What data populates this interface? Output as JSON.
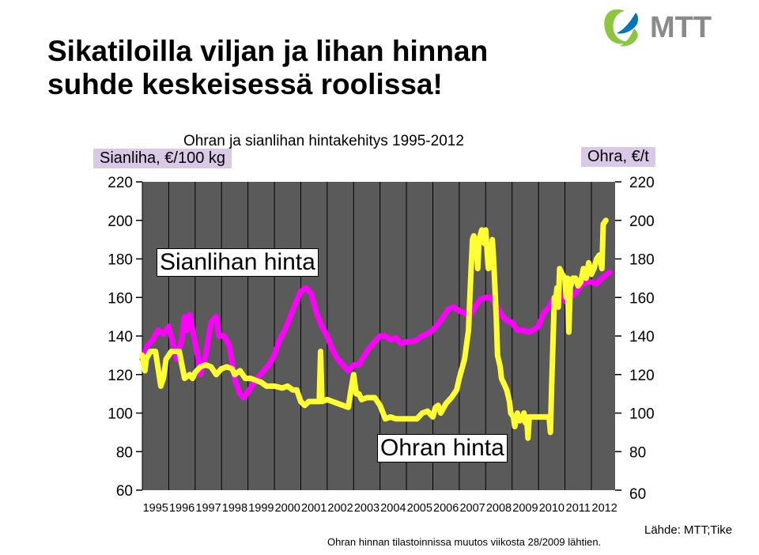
{
  "slide": {
    "title_line1": "Sikatiloilla viljan ja lihan hinnan",
    "title_line2": "suhde keskeisessä roolissa!",
    "logo_text": "MTT",
    "source": "Lähde: MTT;Tike",
    "footnote": "Ohran hinnan tilastoinnissa muutos viikosta 28/2009 lähtien."
  },
  "colors": {
    "plot_background": "#5a5a5a",
    "pork_line": "#ff00ff",
    "barley_line": "#ffff33",
    "label_background": "#d9c8e6",
    "logo_green": "#8cc63f",
    "logo_blue": "#0077bb"
  },
  "chart_data": {
    "type": "line",
    "title": "Ohran ja sianlihan hintakehitys 1995-2012",
    "ylabel_left": "Sianliha, €/100 kg",
    "ylabel_right": "Ohra, €/t",
    "ylim": [
      60,
      220
    ],
    "y_ticks": [
      "60",
      "80",
      "100",
      "120",
      "140",
      "160",
      "180",
      "200",
      "220"
    ],
    "x_range": [
      1995,
      2012.9
    ],
    "x_ticks": [
      "1995",
      "1996",
      "1997",
      "1998",
      "1999",
      "2000",
      "2001",
      "2002",
      "2003",
      "2004",
      "2005",
      "2006",
      "2007",
      "2008",
      "2009",
      "2010",
      "2011",
      "2012"
    ],
    "grid": "vertical",
    "annotations": [
      "Sianlihan hinta",
      "Ohran hinta"
    ],
    "series": [
      {
        "key": "pork",
        "axis": "left",
        "color": "#ff00ff",
        "points": [
          [
            1995.0,
            128
          ],
          [
            1995.2,
            135
          ],
          [
            1995.4,
            138
          ],
          [
            1995.6,
            143
          ],
          [
            1995.8,
            141
          ],
          [
            1996.0,
            145
          ],
          [
            1996.15,
            137
          ],
          [
            1996.3,
            128
          ],
          [
            1996.5,
            138
          ],
          [
            1996.6,
            150
          ],
          [
            1996.7,
            143
          ],
          [
            1996.8,
            151
          ],
          [
            1996.95,
            140
          ],
          [
            1997.1,
            130
          ],
          [
            1997.2,
            120
          ],
          [
            1997.4,
            130
          ],
          [
            1997.6,
            147
          ],
          [
            1997.8,
            150
          ],
          [
            1997.9,
            140
          ],
          [
            1998.1,
            140
          ],
          [
            1998.3,
            135
          ],
          [
            1998.5,
            118
          ],
          [
            1998.7,
            110
          ],
          [
            1998.85,
            108
          ],
          [
            1999.0,
            111
          ],
          [
            1999.3,
            117
          ],
          [
            1999.6,
            122
          ],
          [
            1999.8,
            125
          ],
          [
            2000.0,
            130
          ],
          [
            2000.2,
            138
          ],
          [
            2000.4,
            143
          ],
          [
            2000.6,
            150
          ],
          [
            2000.8,
            157
          ],
          [
            2001.0,
            163
          ],
          [
            2001.2,
            165
          ],
          [
            2001.4,
            162
          ],
          [
            2001.6,
            152
          ],
          [
            2001.8,
            145
          ],
          [
            2002.0,
            140
          ],
          [
            2002.2,
            133
          ],
          [
            2002.4,
            128
          ],
          [
            2002.6,
            125
          ],
          [
            2002.8,
            122
          ],
          [
            2003.0,
            125
          ],
          [
            2003.2,
            125
          ],
          [
            2003.5,
            132
          ],
          [
            2003.8,
            137
          ],
          [
            2004.0,
            140
          ],
          [
            2004.2,
            140
          ],
          [
            2004.4,
            138
          ],
          [
            2004.6,
            139
          ],
          [
            2004.8,
            136
          ],
          [
            2005.0,
            137
          ],
          [
            2005.2,
            137
          ],
          [
            2005.4,
            138
          ],
          [
            2005.6,
            140
          ],
          [
            2005.8,
            141
          ],
          [
            2006.0,
            143
          ],
          [
            2006.3,
            148
          ],
          [
            2006.6,
            154
          ],
          [
            2006.8,
            155
          ],
          [
            2007.0,
            153
          ],
          [
            2007.2,
            152
          ],
          [
            2007.4,
            150
          ],
          [
            2007.6,
            155
          ],
          [
            2007.8,
            159
          ],
          [
            2008.0,
            160
          ],
          [
            2008.2,
            160
          ],
          [
            2008.4,
            156
          ],
          [
            2008.6,
            151
          ],
          [
            2008.8,
            148
          ],
          [
            2009.0,
            147
          ],
          [
            2009.2,
            143
          ],
          [
            2009.4,
            143
          ],
          [
            2009.6,
            142
          ],
          [
            2009.8,
            143
          ],
          [
            2010.0,
            145
          ],
          [
            2010.2,
            152
          ],
          [
            2010.4,
            155
          ],
          [
            2010.6,
            160
          ],
          [
            2010.8,
            162
          ],
          [
            2011.0,
            158
          ],
          [
            2011.2,
            160
          ],
          [
            2011.4,
            162
          ],
          [
            2011.6,
            166
          ],
          [
            2011.8,
            168
          ],
          [
            2012.0,
            168
          ],
          [
            2012.2,
            167
          ],
          [
            2012.4,
            170
          ],
          [
            2012.7,
            173
          ]
        ]
      },
      {
        "key": "barley",
        "axis": "right",
        "color": "#ffff33",
        "points": [
          [
            1995.0,
            130
          ],
          [
            1995.1,
            122
          ],
          [
            1995.15,
            128
          ],
          [
            1995.3,
            132
          ],
          [
            1995.5,
            132
          ],
          [
            1995.7,
            114
          ],
          [
            1995.8,
            118
          ],
          [
            1995.9,
            128
          ],
          [
            1996.1,
            132
          ],
          [
            1996.4,
            132
          ],
          [
            1996.5,
            125
          ],
          [
            1996.6,
            118
          ],
          [
            1996.8,
            120
          ],
          [
            1996.9,
            118
          ],
          [
            1997.0,
            121
          ],
          [
            1997.2,
            124
          ],
          [
            1997.4,
            125
          ],
          [
            1997.6,
            124
          ],
          [
            1997.8,
            120
          ],
          [
            1998.0,
            123
          ],
          [
            1998.2,
            124
          ],
          [
            1998.4,
            123
          ],
          [
            1998.5,
            120
          ],
          [
            1998.7,
            122
          ],
          [
            1998.9,
            118
          ],
          [
            1999.1,
            118
          ],
          [
            1999.3,
            117
          ],
          [
            1999.5,
            116
          ],
          [
            1999.7,
            114
          ],
          [
            2000.0,
            114
          ],
          [
            2000.3,
            113
          ],
          [
            2000.5,
            114
          ],
          [
            2000.7,
            112
          ],
          [
            2000.85,
            112
          ],
          [
            2001.0,
            106
          ],
          [
            2001.15,
            104
          ],
          [
            2001.3,
            106
          ],
          [
            2001.5,
            106
          ],
          [
            2001.7,
            106
          ],
          [
            2001.75,
            132
          ],
          [
            2001.8,
            106
          ],
          [
            2002.0,
            107
          ],
          [
            2002.2,
            106
          ],
          [
            2002.4,
            105
          ],
          [
            2002.6,
            104
          ],
          [
            2002.8,
            103
          ],
          [
            2002.9,
            112
          ],
          [
            2003.0,
            120
          ],
          [
            2003.1,
            110
          ],
          [
            2003.2,
            110
          ],
          [
            2003.3,
            107
          ],
          [
            2003.5,
            108
          ],
          [
            2003.8,
            108
          ],
          [
            2004.0,
            104
          ],
          [
            2004.2,
            97
          ],
          [
            2004.4,
            98
          ],
          [
            2004.6,
            97
          ],
          [
            2004.8,
            97
          ],
          [
            2005.0,
            97
          ],
          [
            2005.2,
            97
          ],
          [
            2005.4,
            97
          ],
          [
            2005.6,
            100
          ],
          [
            2005.8,
            101
          ],
          [
            2006.0,
            98
          ],
          [
            2006.1,
            103
          ],
          [
            2006.2,
            104
          ],
          [
            2006.3,
            100
          ],
          [
            2006.5,
            105
          ],
          [
            2006.7,
            108
          ],
          [
            2006.9,
            112
          ],
          [
            2007.0,
            118
          ],
          [
            2007.2,
            128
          ],
          [
            2007.35,
            143
          ],
          [
            2007.4,
            160
          ],
          [
            2007.45,
            175
          ],
          [
            2007.5,
            190
          ],
          [
            2007.55,
            192
          ],
          [
            2007.65,
            185
          ],
          [
            2007.7,
            175
          ],
          [
            2007.75,
            190
          ],
          [
            2007.85,
            195
          ],
          [
            2007.95,
            188
          ],
          [
            2008.0,
            195
          ],
          [
            2008.05,
            185
          ],
          [
            2008.1,
            175
          ],
          [
            2008.2,
            176
          ],
          [
            2008.25,
            190
          ],
          [
            2008.3,
            180
          ],
          [
            2008.35,
            165
          ],
          [
            2008.4,
            150
          ],
          [
            2008.45,
            130
          ],
          [
            2008.55,
            124
          ],
          [
            2008.6,
            118
          ],
          [
            2008.7,
            115
          ],
          [
            2008.8,
            112
          ],
          [
            2008.9,
            106
          ],
          [
            2008.95,
            100
          ],
          [
            2009.05,
            98
          ],
          [
            2009.1,
            93
          ],
          [
            2009.2,
            100
          ],
          [
            2009.3,
            96
          ],
          [
            2009.4,
            98
          ],
          [
            2009.45,
            100
          ],
          [
            2009.5,
            95
          ],
          [
            2009.55,
            98
          ],
          [
            2009.6,
            87
          ],
          [
            2009.65,
            98
          ],
          [
            2009.7,
            98
          ],
          [
            2009.9,
            98
          ],
          [
            2010.1,
            98
          ],
          [
            2010.3,
            98
          ],
          [
            2010.4,
            98
          ],
          [
            2010.45,
            90
          ],
          [
            2010.5,
            115
          ],
          [
            2010.6,
            160
          ],
          [
            2010.65,
            158
          ],
          [
            2010.7,
            165
          ],
          [
            2010.75,
            155
          ],
          [
            2010.8,
            175
          ],
          [
            2010.9,
            172
          ],
          [
            2011.0,
            170
          ],
          [
            2011.05,
            160
          ],
          [
            2011.1,
            170
          ],
          [
            2011.15,
            142
          ],
          [
            2011.2,
            165
          ],
          [
            2011.3,
            170
          ],
          [
            2011.4,
            170
          ],
          [
            2011.5,
            166
          ],
          [
            2011.6,
            168
          ],
          [
            2011.7,
            175
          ],
          [
            2011.8,
            170
          ],
          [
            2011.9,
            178
          ],
          [
            2012.0,
            172
          ],
          [
            2012.1,
            175
          ],
          [
            2012.2,
            180
          ],
          [
            2012.3,
            182
          ],
          [
            2012.4,
            175
          ],
          [
            2012.45,
            198
          ],
          [
            2012.55,
            200
          ]
        ]
      }
    ]
  }
}
